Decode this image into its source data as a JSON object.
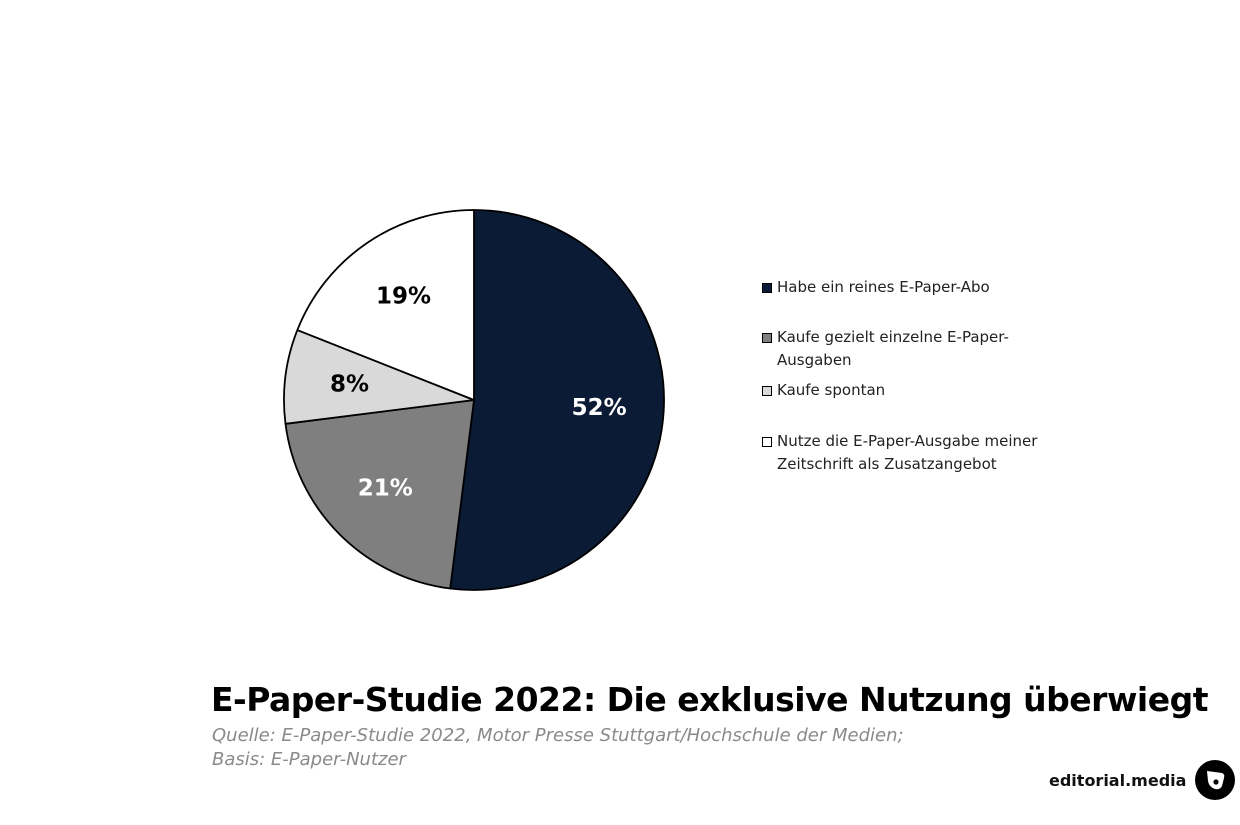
{
  "chart_data": {
    "type": "pie",
    "series": [
      {
        "label": "Habe ein reines E-Paper-Abo",
        "value": 52,
        "value_label": "52%",
        "color": "#0c1b35",
        "text_color": "#ffffff"
      },
      {
        "label": "Kaufe gezielt einzelne E-Paper-Ausgaben",
        "value": 21,
        "value_label": "21%",
        "color": "#7f7f7f",
        "text_color": "#ffffff"
      },
      {
        "label": "Kaufe spontan",
        "value": 8,
        "value_label": "8%",
        "color": "#d9d9d9",
        "text_color": "#000000"
      },
      {
        "label": "Nutze die E-Paper-Ausgabe meiner Zeitschrift als Zusatzangebot",
        "value": 19,
        "value_label": "19%",
        "color": "#ffffff",
        "text_color": "#000000"
      }
    ],
    "start": "12 o'clock",
    "direction": "clockwise",
    "legend_position": "right"
  },
  "title": "E-Paper-Studie 2022: Die exklusive Nutzung überwiegt",
  "source_line1": "Quelle: E-Paper-Studie 2022, Motor Presse Stuttgart/Hochschule der Medien;",
  "source_line2": "Basis: E-Paper-Nutzer",
  "brand": {
    "name": "editorial.media",
    "logo_icon": "editorial-media-logo-icon"
  }
}
